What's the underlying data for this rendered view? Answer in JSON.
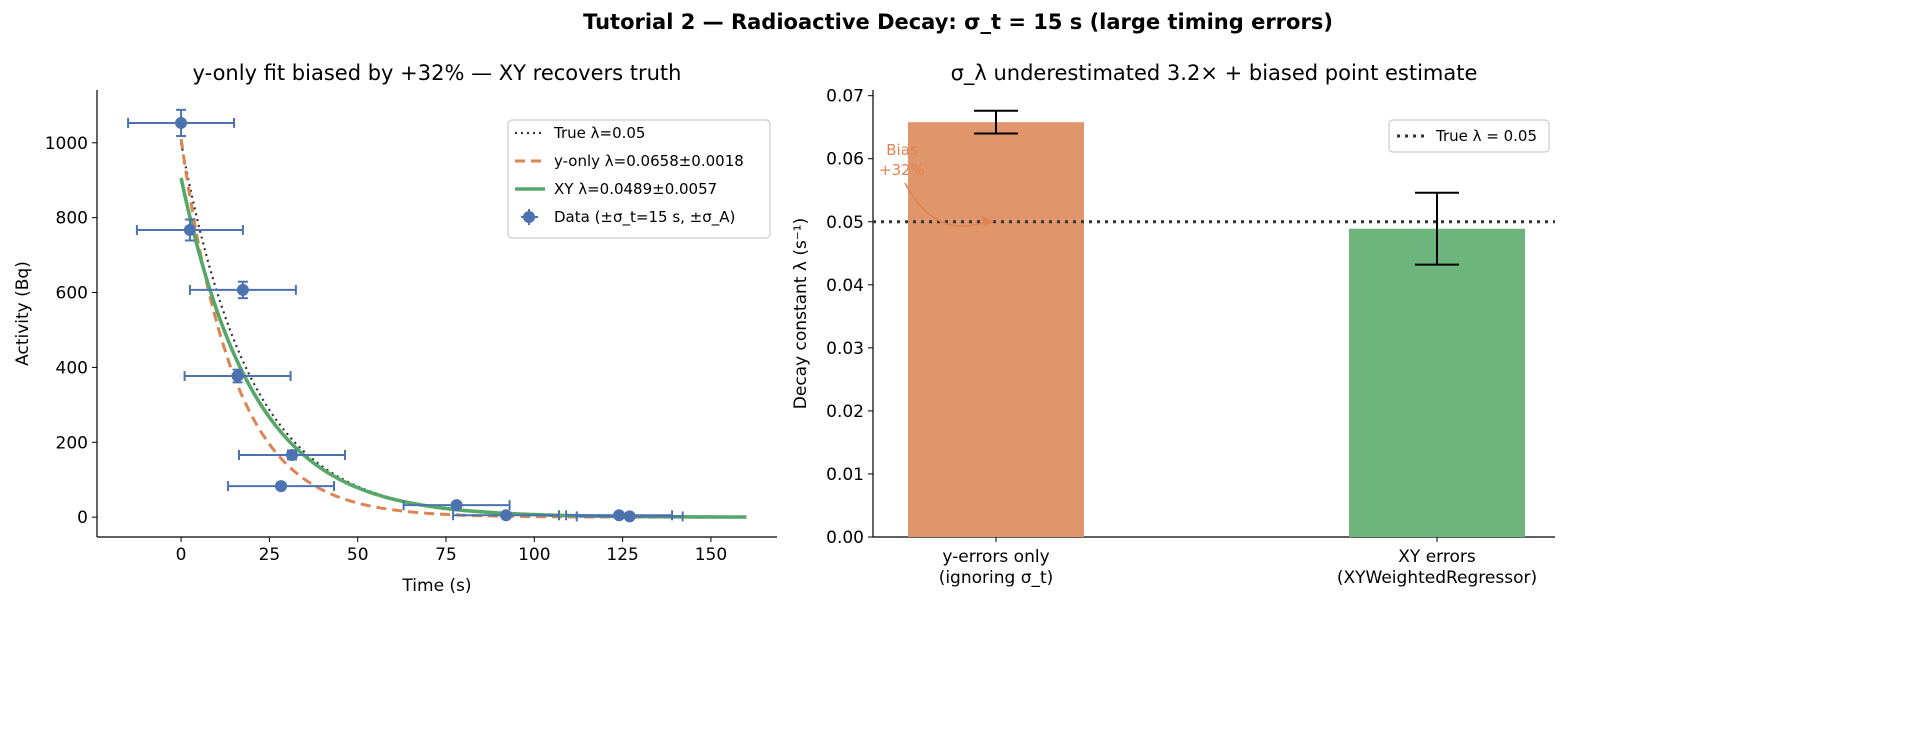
{
  "suptitle": "Tutorial 2 — Radioactive Decay: σ_t = 15 s (large timing errors)",
  "chart_data": [
    {
      "type": "scatter",
      "title": "y-only fit biased by +32%  — XY recovers truth",
      "xlabel": "Time (s)",
      "ylabel": "Activity (Bq)",
      "xlim": [
        -23.8,
        168.7
      ],
      "ylim": [
        -53,
        1141
      ],
      "xticks": [
        0,
        25,
        50,
        75,
        100,
        125,
        150
      ],
      "yticks": [
        0,
        200,
        400,
        600,
        800,
        1000
      ],
      "grid": false,
      "legend_position": "top-right",
      "curves": [
        {
          "name": "True  λ=0.05",
          "A0": 1000,
          "lambda": 0.05,
          "style": "dotted",
          "color": "#333333",
          "x_range": [
            0,
            160
          ]
        },
        {
          "name": "y-only  λ=0.0658±0.0018",
          "A0": 1010,
          "lambda": 0.0658,
          "style": "dashed",
          "color": "#dd8452",
          "x_range": [
            0,
            160
          ]
        },
        {
          "name": "XY  λ=0.0489±0.0057",
          "A0": 906,
          "lambda": 0.0489,
          "style": "solid",
          "color": "#55a868",
          "x_range": [
            0,
            160
          ]
        }
      ],
      "data_series": {
        "name": "Data (±σ_t=15 s, ±σ_A)",
        "color": "#4c72b0",
        "x_error": 15,
        "points": [
          {
            "x": 0,
            "y": 1053,
            "yerr": 35
          },
          {
            "x": 2.5,
            "y": 767,
            "yerr": 28
          },
          {
            "x": 17.5,
            "y": 607,
            "yerr": 22
          },
          {
            "x": 16,
            "y": 377,
            "yerr": 17
          },
          {
            "x": 31.4,
            "y": 166,
            "yerr": 12
          },
          {
            "x": 28.3,
            "y": 83,
            "yerr": 8
          },
          {
            "x": 78,
            "y": 32,
            "yerr": 5
          },
          {
            "x": 92,
            "y": 5,
            "yerr": 2
          },
          {
            "x": 124,
            "y": 5,
            "yerr": 2
          },
          {
            "x": 127,
            "y": 2,
            "yerr": 1
          }
        ]
      }
    },
    {
      "type": "bar",
      "title": "σ_λ underestimated 3.2×  +  biased point estimate",
      "ylabel": "Decay constant λ (s⁻¹)",
      "ylim": [
        0,
        0.0709
      ],
      "yticks": [
        "0.00",
        "0.01",
        "0.02",
        "0.03",
        "0.04",
        "0.05",
        "0.06",
        "0.07"
      ],
      "grid": false,
      "categories": [
        [
          "y-errors only",
          "(ignoring σ_t)"
        ],
        [
          "XY errors",
          "(XYWeightedRegressor)"
        ]
      ],
      "values": [
        0.0658,
        0.0489
      ],
      "errors": [
        0.0018,
        0.0057
      ],
      "colors": [
        "#e0956a",
        "#6db57d"
      ],
      "reference_line": {
        "value": 0.05,
        "label": "True λ = 0.05",
        "style": "dotted",
        "color": "#333333"
      },
      "legend_position": "top-right",
      "annotation": {
        "lines": [
          "Bias",
          "+32%"
        ],
        "color": "#dd8452",
        "points_to": 0.05
      }
    }
  ]
}
